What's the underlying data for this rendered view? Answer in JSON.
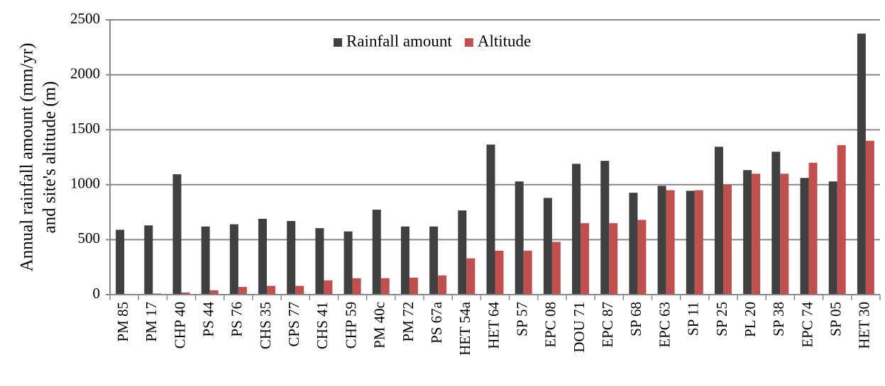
{
  "chart_data": {
    "type": "bar",
    "y_label": [
      "Annual rainfall amount (mm/yr)",
      "and site's altitude (m)"
    ],
    "categories": [
      "PM 85",
      "PM 17",
      "CHP 40",
      "PS 44",
      "PS 76",
      "CHS 35",
      "CPS 77",
      "CHS 41",
      "CHP 59",
      "PM 40c",
      "PM 72",
      "PS 67a",
      "HET 54a",
      "HET 64",
      "SP 57",
      "EPC 08",
      "DOU 71",
      "EPC 87",
      "SP 68",
      "EPC 63",
      "SP 11",
      "SP 25",
      "PL 20",
      "SP 38",
      "EPC 74",
      "SP 05",
      "HET 30"
    ],
    "series": [
      {
        "name": "Rainfall amount",
        "color": "#404040",
        "values": [
          590,
          630,
          1095,
          620,
          640,
          690,
          670,
          605,
          575,
          773,
          620,
          620,
          766,
          1365,
          1030,
          880,
          1190,
          1217,
          927,
          990,
          945,
          1345,
          1133,
          1300,
          1062,
          1030,
          2375
        ]
      },
      {
        "name": "Altitude",
        "color": "#c0504d",
        "values": [
          0,
          10,
          20,
          40,
          70,
          80,
          80,
          130,
          150,
          150,
          155,
          175,
          330,
          400,
          400,
          480,
          650,
          650,
          680,
          950,
          950,
          1000,
          1100,
          1100,
          1200,
          1360,
          1400
        ]
      }
    ],
    "ylim": [
      0,
      2500
    ],
    "yticks": [
      0,
      500,
      1000,
      1500,
      2000,
      2500
    ],
    "grid": true,
    "legend": "top"
  }
}
